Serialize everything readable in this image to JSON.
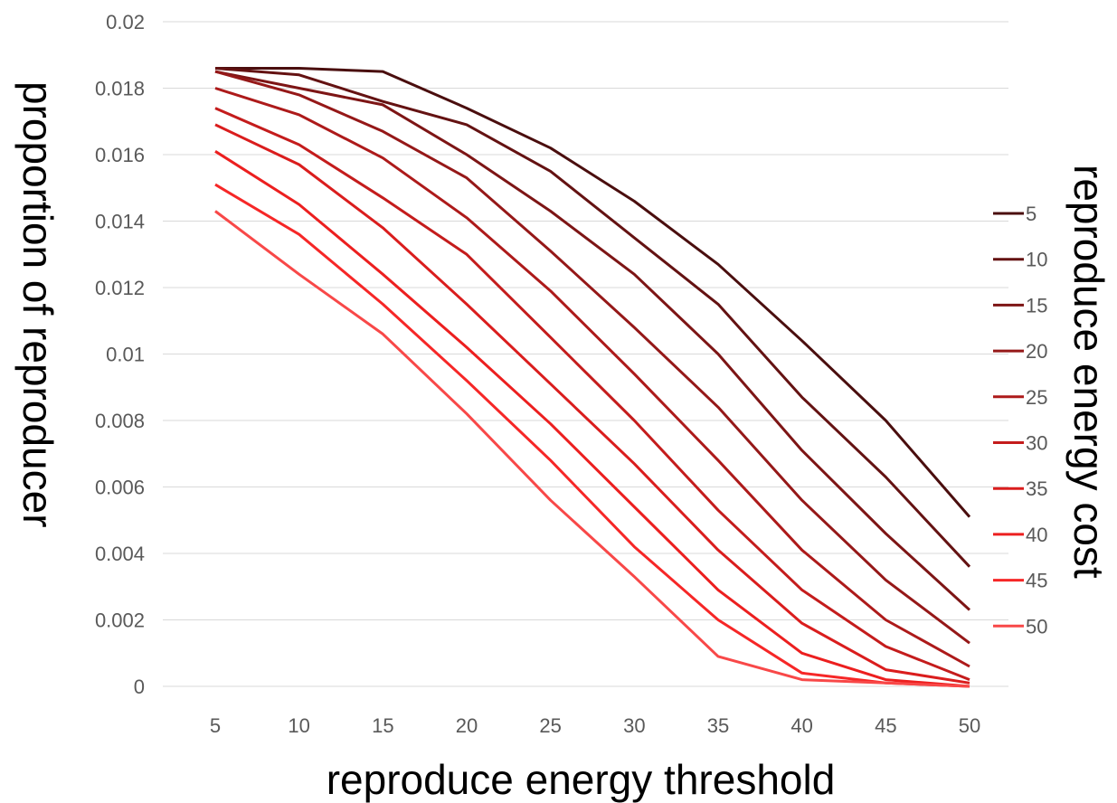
{
  "chart_data": {
    "type": "line",
    "xlabel": "reproduce energy threshold",
    "ylabel": "proportion of reproducer",
    "legend_title": "reproduce energy cost",
    "legend_position": "right",
    "grid": "horizontal",
    "x": [
      "5",
      "10",
      "15",
      "20",
      "25",
      "30",
      "35",
      "40",
      "45",
      "50"
    ],
    "ylim": [
      0,
      0.02
    ],
    "y_ticks": [
      "0",
      "0.002",
      "0.004",
      "0.006",
      "0.008",
      "0.01",
      "0.012",
      "0.014",
      "0.016",
      "0.018",
      "0.02"
    ],
    "series": [
      {
        "name": "5",
        "color": "#4a0e0e",
        "values": [
          0.0186,
          0.0186,
          0.0185,
          0.0174,
          0.0162,
          0.0146,
          0.0127,
          0.0104,
          0.008,
          0.0051
        ]
      },
      {
        "name": "10",
        "color": "#641212",
        "values": [
          0.0186,
          0.0184,
          0.0176,
          0.0169,
          0.0155,
          0.0135,
          0.0115,
          0.0087,
          0.0063,
          0.0036
        ]
      },
      {
        "name": "15",
        "color": "#7d1515",
        "values": [
          0.0185,
          0.018,
          0.0175,
          0.016,
          0.0143,
          0.0124,
          0.01,
          0.0071,
          0.0046,
          0.0023
        ]
      },
      {
        "name": "20",
        "color": "#951818",
        "values": [
          0.0185,
          0.0178,
          0.0167,
          0.0153,
          0.0131,
          0.0108,
          0.0084,
          0.0056,
          0.0032,
          0.0013
        ]
      },
      {
        "name": "25",
        "color": "#ad1a1a",
        "values": [
          0.018,
          0.0172,
          0.0159,
          0.0141,
          0.0119,
          0.0094,
          0.0068,
          0.0041,
          0.002,
          0.0006
        ]
      },
      {
        "name": "30",
        "color": "#c41c1c",
        "values": [
          0.0174,
          0.0163,
          0.0147,
          0.013,
          0.0105,
          0.008,
          0.0053,
          0.0029,
          0.0012,
          0.0002
        ]
      },
      {
        "name": "35",
        "color": "#da1d1d",
        "values": [
          0.0169,
          0.0157,
          0.0138,
          0.0115,
          0.0091,
          0.0067,
          0.0041,
          0.0019,
          0.0005,
          0.0001
        ]
      },
      {
        "name": "40",
        "color": "#ec1f1f",
        "values": [
          0.0161,
          0.0145,
          0.0124,
          0.0102,
          0.0079,
          0.0054,
          0.0029,
          0.001,
          0.0002,
          0.0
        ]
      },
      {
        "name": "45",
        "color": "#f62727",
        "values": [
          0.0151,
          0.0136,
          0.0115,
          0.0092,
          0.0068,
          0.0042,
          0.002,
          0.0004,
          0.0001,
          0.0
        ]
      },
      {
        "name": "50",
        "color": "#f84848",
        "values": [
          0.0143,
          0.0124,
          0.0106,
          0.0082,
          0.0056,
          0.0033,
          0.0009,
          0.0002,
          0.0001,
          0.0
        ]
      }
    ]
  }
}
